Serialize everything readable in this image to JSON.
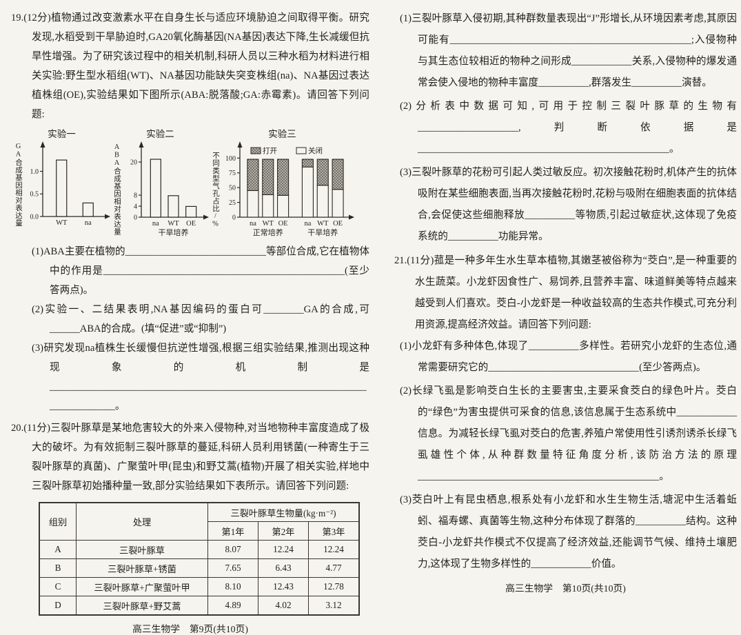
{
  "page_left": {
    "q19": {
      "intro": "19.(12分)植物通过改变激素水平在自身生长与适应环境胁迫之间取得平衡。研究发现,水稻受到干旱胁迫时,GA20氧化酶基因(NA基因)表达下降,生长减缓但抗旱性增强。为了研究该过程中的相关机制,科研人员以三种水稻为材料进行相关实验:野生型水稻组(WT)、NA基因功能缺失突变株组(na)、NA基因过表达植株组(OE),实验结果如下图所示(ABA:脱落酸;GA:赤霉素)。请回答下列问题:",
      "sub1": "(1)ABA主要在植物的____________________________等部位合成,它在植物体中的作用是________________________________________________(至少答两点)。",
      "sub2": "(2)实验一、二结果表明,NA基因编码的蛋白可________GA的合成,可______ABA的合成。(填“促进”或“抑制”)",
      "sub3": "(3)研究发现na植株生长缓慢但抗逆性增强,根据三组实验结果,推测出现这种现象的机制是____________________________________________________________________________。"
    },
    "q20": {
      "intro": "20.(11分)三裂叶豚草是某地危害较大的外来入侵物种,对当地物种丰富度造成了极大的破坏。为有效扼制三裂叶豚草的蔓延,科研人员利用锈菌(一种寄生于三裂叶豚草的真菌)、广聚萤叶甲(昆虫)和野艾蒿(植物)开展了相关实验,样地中三裂叶豚草初始播种量一致,部分实验结果如下表所示。请回答下列问题:",
      "table": {
        "col_group": "组别",
        "col_treatment": "处理",
        "col_biomass": "三裂叶豚草生物量(kg·m⁻²)",
        "years": [
          "第1年",
          "第2年",
          "第3年"
        ],
        "rows": [
          {
            "group": "A",
            "treatment": "三裂叶豚草",
            "y1": "8.07",
            "y2": "12.24",
            "y3": "12.24"
          },
          {
            "group": "B",
            "treatment": "三裂叶豚草+锈菌",
            "y1": "7.65",
            "y2": "6.43",
            "y3": "4.77"
          },
          {
            "group": "C",
            "treatment": "三裂叶豚草+广聚萤叶甲",
            "y1": "8.10",
            "y2": "12.43",
            "y3": "12.78"
          },
          {
            "group": "D",
            "treatment": "三裂叶豚草+野艾蒿",
            "y1": "4.89",
            "y2": "4.02",
            "y3": "3.12"
          }
        ]
      }
    },
    "footer": "高三生物学　第9页(共10页)"
  },
  "page_right": {
    "q20_sub1": "(1)三裂叶豚草入侵初期,其种群数量表现出“J”形增长,从环境因素考虑,其原因可能有________________________________________________;入侵物种与其生态位较相近的物种之间形成____________关系,入侵物种的爆发通常会使入侵地的物种丰富度__________,群落发生__________演替。",
    "q20_sub2": "(2)分析表中数据可知,可用于控制三裂叶豚草的生物有____________________,判断依据是__________________________________________________。",
    "q20_sub3": "(3)三裂叶豚草的花粉可引起人类过敏反应。初次接触花粉时,机体产生的抗体吸附在某些细胞表面,当再次接触花粉时,花粉与吸附在细胞表面的抗体结合,会促使这些细胞释放__________等物质,引起过敏症状,这体现了免疫系统的__________功能异常。",
    "q21": {
      "intro": "21.(11分)菰是一种多年生水生草本植物,其嫩茎被俗称为“茭白”,是一种重要的水生蔬菜。小龙虾因食性广、易饲养,且营养丰富、味道鲜美等特点越来越受到人们喜欢。茭白-小龙虾是一种收益较高的生态共作模式,可充分利用资源,提高经济效益。请回答下列问题:",
      "sub1": "(1)小龙虾有多种体色,体现了__________多样性。若研究小龙虾的生态位,通常需要研究它的______________________________(至少答两点)。",
      "sub2": "(2)长绿飞虱是影响茭白生长的主要害虫,主要采食茭白的绿色叶片。茭白的“绿色”为害虫提供可采食的信息,该信息属于生态系统中____________信息。为减轻长绿飞虱对茭白的危害,养殖户常使用性引诱剂诱杀长绿飞虱雄性个体,从种群数量特征角度分析,该防治方法的原理________________________________________________。",
      "sub3": "(3)茭白叶上有昆虫栖息,根系处有小龙虾和水生生物生活,塘泥中生活着蚯蚓、福寿螺、真菌等生物,这种分布体现了群落的__________结构。这种茭白-小龙虾共作模式不仅提高了经济效益,还能调节气候、维持土壤肥力,这体现了生物多样性的____________价值。"
    },
    "footer": "高三生物学　第10页(共10页)"
  },
  "chart_data": [
    {
      "type": "bar",
      "title": "实验一",
      "ylabel": "GA合成基因相对表达量",
      "xlabel": "",
      "categories": [
        "WT",
        "na"
      ],
      "values": [
        1.25,
        0.3
      ],
      "ytick_values": [
        0,
        0.5,
        1.0
      ],
      "ytick_labels": [
        "0.0",
        "0.5",
        "1.0"
      ],
      "ylim": [
        0,
        1.45
      ],
      "bar_fill": "#f5f4ef",
      "axis_color": "#2b2822"
    },
    {
      "type": "bar",
      "title": "实验二",
      "ylabel": "ABA合成基因相对表达量",
      "xlabel": "干旱培养",
      "categories": [
        "na",
        "WT",
        "OE"
      ],
      "values": [
        21,
        7.8,
        3.9
      ],
      "ytick_values": [
        0,
        4,
        8,
        20
      ],
      "ytick_labels": [
        "0",
        "4",
        "8",
        "20"
      ],
      "ylim": [
        0,
        24
      ],
      "bar_fill": "#f5f4ef",
      "axis_color": "#2b2822"
    },
    {
      "type": "stacked-bar",
      "title": "实验三",
      "ylabel": "不同类型气孔占比/%",
      "xlabel": "",
      "categories": [
        "na",
        "WT",
        "OE",
        "na",
        "WT",
        "OE"
      ],
      "group_labels": [
        "正常培养",
        "干旱培养"
      ],
      "series": [
        {
          "name": "关闭",
          "values": [
            45,
            38,
            37,
            85,
            54,
            47
          ]
        },
        {
          "name": "打开",
          "values": [
            53,
            60,
            61,
            13,
            44,
            51
          ]
        }
      ],
      "legend": [
        "打开",
        "关闭"
      ],
      "ytick_values": [
        0,
        25,
        50,
        75,
        100
      ],
      "ytick_labels": [
        "0",
        "25",
        "50",
        "75",
        "100"
      ],
      "ylim": [
        0,
        112
      ],
      "bar_fill": "#f5f4ef",
      "axis_color": "#2b2822"
    }
  ]
}
